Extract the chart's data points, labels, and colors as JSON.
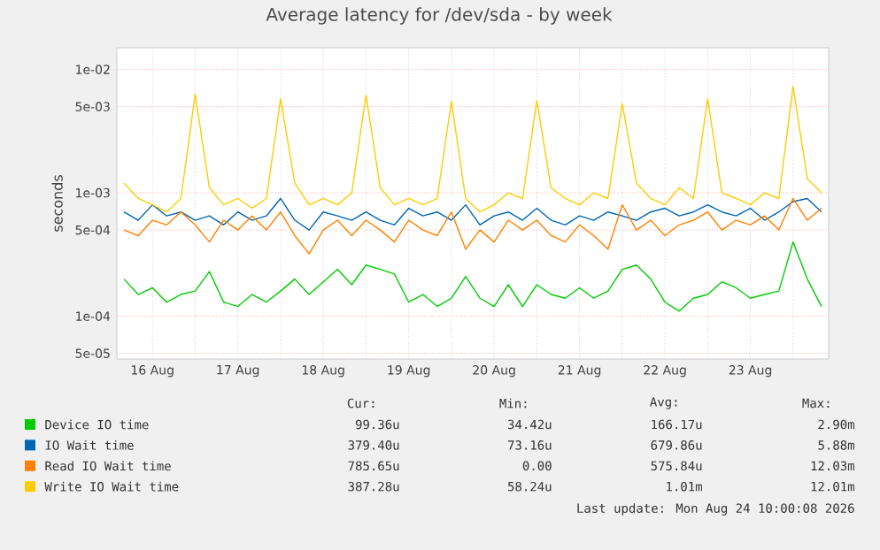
{
  "chart_data": {
    "type": "line",
    "title": "Average latency for /dev/sda - by week",
    "ylabel": "seconds",
    "x": [
      "2026-08-16T04:00",
      "2026-08-16T08:00",
      "2026-08-16T12:00",
      "2026-08-16T16:00",
      "2026-08-16T20:00",
      "2026-08-17T00:00",
      "2026-08-17T04:00",
      "2026-08-17T08:00",
      "2026-08-17T12:00",
      "2026-08-17T16:00",
      "2026-08-17T20:00",
      "2026-08-18T00:00",
      "2026-08-18T04:00",
      "2026-08-18T08:00",
      "2026-08-18T12:00",
      "2026-08-18T16:00",
      "2026-08-18T20:00",
      "2026-08-19T00:00",
      "2026-08-19T04:00",
      "2026-08-19T08:00",
      "2026-08-19T12:00",
      "2026-08-19T16:00",
      "2026-08-19T20:00",
      "2026-08-20T00:00",
      "2026-08-20T04:00",
      "2026-08-20T08:00",
      "2026-08-20T12:00",
      "2026-08-20T16:00",
      "2026-08-20T20:00",
      "2026-08-21T00:00",
      "2026-08-21T04:00",
      "2026-08-21T08:00",
      "2026-08-21T12:00",
      "2026-08-21T16:00",
      "2026-08-21T20:00",
      "2026-08-22T00:00",
      "2026-08-22T04:00",
      "2026-08-22T08:00",
      "2026-08-22T12:00",
      "2026-08-22T16:00",
      "2026-08-22T20:00",
      "2026-08-23T00:00",
      "2026-08-23T04:00",
      "2026-08-23T08:00",
      "2026-08-23T12:00",
      "2026-08-23T16:00",
      "2026-08-23T20:00",
      "2026-08-24T00:00",
      "2026-08-24T04:00",
      "2026-08-24T08:00"
    ],
    "series": [
      {
        "name": "Device IO time",
        "color": "#00cc00",
        "values": [
          0.0002,
          0.00015,
          0.00017,
          0.00013,
          0.00015,
          0.00016,
          0.00023,
          0.00013,
          0.00012,
          0.00015,
          0.00013,
          0.00016,
          0.0002,
          0.00015,
          0.00019,
          0.00024,
          0.00018,
          0.00026,
          0.00024,
          0.00022,
          0.00013,
          0.00015,
          0.00012,
          0.00014,
          0.00021,
          0.00014,
          0.00012,
          0.00018,
          0.00012,
          0.00018,
          0.00015,
          0.00014,
          0.00017,
          0.00014,
          0.00016,
          0.00024,
          0.00026,
          0.0002,
          0.00013,
          0.00011,
          0.00014,
          0.00015,
          0.00019,
          0.00017,
          0.00014,
          0.00015,
          0.00016,
          0.0004,
          0.0002,
          0.00012
        ]
      },
      {
        "name": "IO Wait time",
        "color": "#0066b3",
        "values": [
          0.0007,
          0.0006,
          0.0008,
          0.00065,
          0.0007,
          0.0006,
          0.00065,
          0.00055,
          0.0007,
          0.0006,
          0.00065,
          0.0009,
          0.0006,
          0.0005,
          0.0007,
          0.00065,
          0.0006,
          0.0007,
          0.0006,
          0.00055,
          0.00075,
          0.00065,
          0.0007,
          0.0006,
          0.0008,
          0.00055,
          0.00065,
          0.0007,
          0.0006,
          0.00075,
          0.0006,
          0.00055,
          0.00065,
          0.0006,
          0.0007,
          0.00065,
          0.0006,
          0.0007,
          0.00075,
          0.00065,
          0.0007,
          0.0008,
          0.0007,
          0.00065,
          0.00075,
          0.0006,
          0.0007,
          0.00085,
          0.0009,
          0.0007
        ]
      },
      {
        "name": "Read IO Wait time",
        "color": "#ff8000",
        "values": [
          0.0005,
          0.00045,
          0.0006,
          0.00055,
          0.0007,
          0.00055,
          0.0004,
          0.0006,
          0.0005,
          0.00065,
          0.0005,
          0.0007,
          0.00045,
          0.00032,
          0.0005,
          0.0006,
          0.00045,
          0.0006,
          0.0005,
          0.0004,
          0.0006,
          0.0005,
          0.00045,
          0.0007,
          0.00035,
          0.0005,
          0.0004,
          0.0006,
          0.0005,
          0.0006,
          0.00045,
          0.0004,
          0.00055,
          0.00045,
          0.00035,
          0.0008,
          0.0005,
          0.0006,
          0.00045,
          0.00055,
          0.0006,
          0.0007,
          0.0005,
          0.0006,
          0.00055,
          0.00065,
          0.0005,
          0.0009,
          0.0006,
          0.00075
        ]
      },
      {
        "name": "Write IO Wait time",
        "color": "#ffcc00",
        "values": [
          0.0012,
          0.0009,
          0.0008,
          0.0007,
          0.0009,
          0.0063,
          0.0011,
          0.0008,
          0.0009,
          0.00075,
          0.0009,
          0.0058,
          0.0012,
          0.0008,
          0.0009,
          0.0008,
          0.001,
          0.0062,
          0.0011,
          0.0008,
          0.0009,
          0.0008,
          0.0009,
          0.0055,
          0.0009,
          0.0007,
          0.0008,
          0.001,
          0.0009,
          0.0056,
          0.0011,
          0.0009,
          0.0008,
          0.001,
          0.0009,
          0.0053,
          0.0012,
          0.0009,
          0.0008,
          0.0011,
          0.0009,
          0.0058,
          0.001,
          0.0009,
          0.0008,
          0.001,
          0.0009,
          0.0073,
          0.0013,
          0.001
        ]
      }
    ],
    "xlim": [
      "2026-08-16T02:00",
      "2026-08-24T10:00"
    ],
    "xticks": [
      {
        "value": "2026-08-16T12:00",
        "label": "16 Aug"
      },
      {
        "value": "2026-08-17T12:00",
        "label": "17 Aug"
      },
      {
        "value": "2026-08-18T12:00",
        "label": "18 Aug"
      },
      {
        "value": "2026-08-19T12:00",
        "label": "19 Aug"
      },
      {
        "value": "2026-08-20T12:00",
        "label": "20 Aug"
      },
      {
        "value": "2026-08-21T12:00",
        "label": "21 Aug"
      },
      {
        "value": "2026-08-22T12:00",
        "label": "22 Aug"
      },
      {
        "value": "2026-08-23T12:00",
        "label": "23 Aug"
      },
      {
        "value": "2026-08-17T00:00",
        "label": null
      },
      {
        "value": "2026-08-18T00:00",
        "label": null
      },
      {
        "value": "2026-08-19T00:00",
        "label": null
      },
      {
        "value": "2026-08-20T00:00",
        "label": null
      },
      {
        "value": "2026-08-21T00:00",
        "label": null
      },
      {
        "value": "2026-08-22T00:00",
        "label": null
      },
      {
        "value": "2026-08-23T00:00",
        "label": null
      },
      {
        "value": "2026-08-24T00:00",
        "label": null
      }
    ],
    "ylim": [
      4.5e-05,
      0.015
    ],
    "yticks": [
      {
        "value": 0.01,
        "label": "1e-02"
      },
      {
        "value": 0.005,
        "label": "5e-03"
      },
      {
        "value": 0.001,
        "label": "1e-03"
      },
      {
        "value": 0.0005,
        "label": "5e-04"
      },
      {
        "value": 0.0001,
        "label": "1e-04"
      },
      {
        "value": 5e-05,
        "label": "5e-05"
      }
    ],
    "log": "y",
    "grid": true,
    "legend": "bottom",
    "marker": "none",
    "line_style": "solid",
    "annotations": [
      "Cur:",
      "Min:",
      "Avg:",
      "Max:",
      "99.36u",
      "34.42u",
      "166.17u",
      "2.90m",
      "379.40u",
      "73.16u",
      "679.86u",
      "5.88m",
      "785.65u",
      "0.00",
      "575.84u",
      "12.03m",
      "387.28u",
      "58.24u",
      "1.01m",
      "12.01m",
      "Last update: Mon Aug 24 10:00:08 2026"
    ]
  }
}
